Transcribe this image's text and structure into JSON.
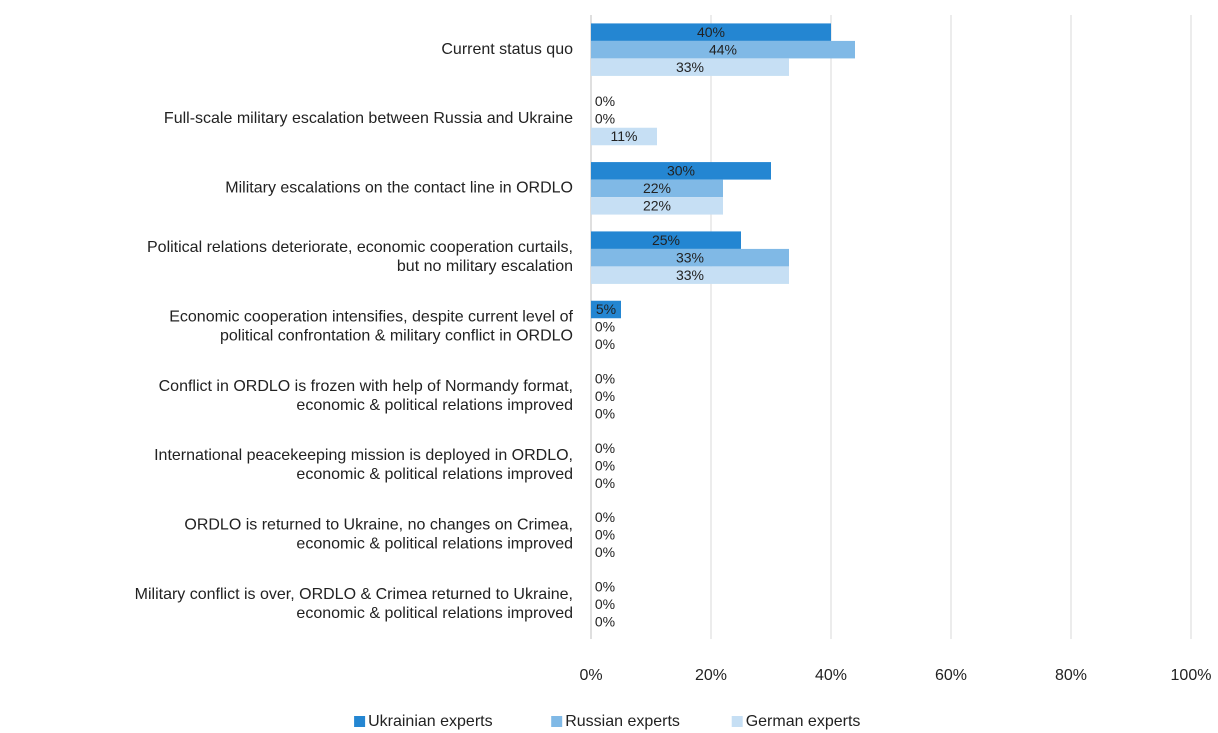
{
  "chart_data": {
    "type": "bar",
    "orientation": "horizontal",
    "categories": [
      "Current status quo",
      "Full-scale military escalation between Russia and Ukraine",
      "Military escalations on the contact line in ORDLO",
      "Political relations deteriorate, economic cooperation curtails,\nbut no military escalation",
      "Economic cooperation intensifies, despite current level of\npolitical confrontation & military conflict in ORDLO",
      "Conflict in ORDLO is frozen with help of Normandy format,\neconomic & political relations improved",
      "International peacekeeping mission is deployed in ORDLO,\neconomic & political relations improved",
      "ORDLO is returned to Ukraine, no changes on Crimea,\neconomic & political relations improved",
      "Military conflict is over, ORDLO & Crimea returned to Ukraine,\neconomic & political relations improved"
    ],
    "series": [
      {
        "name": "Ukrainian experts",
        "color": "#2486d2",
        "values": [
          40,
          0,
          30,
          25,
          5,
          0,
          0,
          0,
          0
        ],
        "value_labels": [
          "40%",
          "0%",
          "30%",
          "25%",
          "5%",
          "0%",
          "0%",
          "0%",
          "0%"
        ]
      },
      {
        "name": "Russian experts",
        "color": "#80b9e6",
        "values": [
          44,
          0,
          22,
          33,
          0,
          0,
          0,
          0,
          0
        ],
        "value_labels": [
          "44%",
          "0%",
          "22%",
          "33%",
          "0%",
          "0%",
          "0%",
          "0%",
          "0%"
        ]
      },
      {
        "name": "German experts",
        "color": "#c6dff4",
        "values": [
          33,
          11,
          22,
          33,
          0,
          0,
          0,
          0,
          0
        ],
        "value_labels": [
          "33%",
          "11%",
          "22%",
          "33%",
          "0%",
          "0%",
          "0%",
          "0%",
          "0%"
        ]
      }
    ],
    "xlim": [
      0,
      100
    ],
    "xticks": [
      {
        "value": 0,
        "label": "0%"
      },
      {
        "value": 20,
        "label": "20%"
      },
      {
        "value": 40,
        "label": "40%"
      },
      {
        "value": 60,
        "label": "60%"
      },
      {
        "value": 80,
        "label": "80%"
      },
      {
        "value": 100,
        "label": "100%"
      }
    ],
    "grid": true,
    "legend": "bottom"
  }
}
